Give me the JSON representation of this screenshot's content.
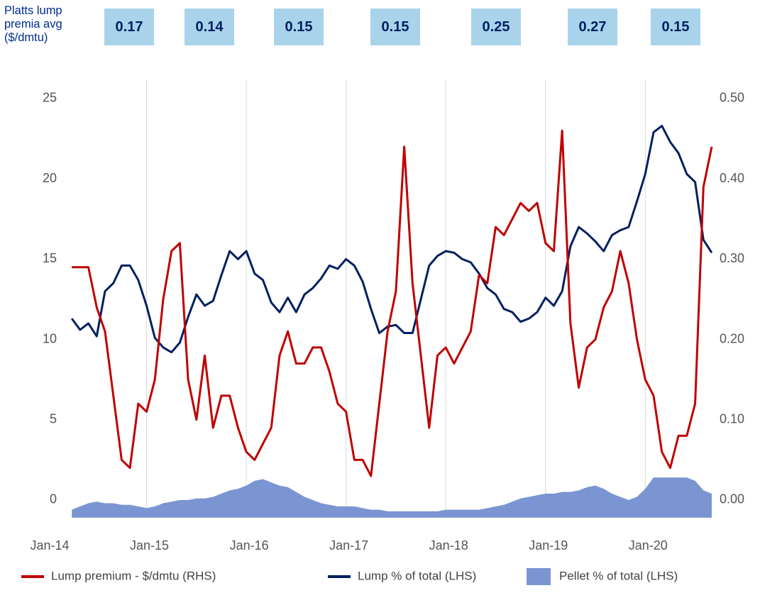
{
  "chart_data": {
    "type": "line",
    "premia": {
      "label": "Platts lump premia avg ($/dmtu)",
      "values": [
        0.17,
        0.14,
        0.15,
        0.15,
        0.25,
        0.27,
        0.15
      ]
    },
    "x": [
      "2014-04",
      "2014-05",
      "2014-06",
      "2014-07",
      "2014-08",
      "2014-09",
      "2014-10",
      "2014-11",
      "2014-12",
      "2015-01",
      "2015-02",
      "2015-03",
      "2015-04",
      "2015-05",
      "2015-06",
      "2015-07",
      "2015-08",
      "2015-09",
      "2015-10",
      "2015-11",
      "2015-12",
      "2016-01",
      "2016-02",
      "2016-03",
      "2016-04",
      "2016-05",
      "2016-06",
      "2016-07",
      "2016-08",
      "2016-09",
      "2016-10",
      "2016-11",
      "2016-12",
      "2017-01",
      "2017-02",
      "2017-03",
      "2017-04",
      "2017-05",
      "2017-06",
      "2017-07",
      "2017-08",
      "2017-09",
      "2017-10",
      "2017-11",
      "2017-12",
      "2018-01",
      "2018-02",
      "2018-03",
      "2018-04",
      "2018-05",
      "2018-06",
      "2018-07",
      "2018-08",
      "2018-09",
      "2018-10",
      "2018-11",
      "2018-12",
      "2019-01",
      "2019-02",
      "2019-03",
      "2019-04",
      "2019-05",
      "2019-06",
      "2019-07",
      "2019-08",
      "2019-09",
      "2019-10",
      "2019-11",
      "2019-12",
      "2020-01",
      "2020-02",
      "2020-03",
      "2020-04",
      "2020-05",
      "2020-06",
      "2020-07",
      "2020-08",
      "2020-09"
    ],
    "series": [
      {
        "name": "Lump premium - $/dmtu (RHS)",
        "type": "line",
        "axis": "y2",
        "color": "#c00000",
        "values": [
          0.29,
          0.29,
          0.29,
          0.24,
          0.21,
          0.13,
          0.05,
          0.04,
          0.12,
          0.11,
          0.15,
          0.25,
          0.31,
          0.32,
          0.15,
          0.1,
          0.18,
          0.09,
          0.13,
          0.13,
          0.09,
          0.06,
          0.05,
          0.07,
          0.09,
          0.18,
          0.21,
          0.17,
          0.17,
          0.19,
          0.19,
          0.16,
          0.12,
          0.11,
          0.05,
          0.05,
          0.03,
          0.12,
          0.21,
          0.26,
          0.44,
          0.27,
          0.18,
          0.09,
          0.18,
          0.19,
          0.17,
          0.19,
          0.21,
          0.28,
          0.27,
          0.34,
          0.33,
          0.35,
          0.37,
          0.36,
          0.37,
          0.32,
          0.31,
          0.46,
          0.22,
          0.14,
          0.19,
          0.2,
          0.24,
          0.26,
          0.31,
          0.27,
          0.2,
          0.15,
          0.13,
          0.06,
          0.04,
          0.08,
          0.08,
          0.12,
          0.39,
          0.44
        ]
      },
      {
        "name": "Lump % of total (LHS)",
        "type": "line",
        "color": "#002060",
        "values": [
          11.3,
          10.6,
          11.0,
          10.2,
          13.0,
          13.5,
          14.6,
          14.6,
          13.7,
          12.1,
          10.1,
          9.5,
          9.2,
          9.8,
          11.4,
          12.8,
          12.1,
          12.4,
          14.0,
          15.5,
          15.0,
          15.5,
          14.1,
          13.7,
          12.3,
          11.7,
          12.6,
          11.7,
          12.8,
          13.2,
          13.8,
          14.6,
          14.4,
          15.0,
          14.6,
          13.6,
          11.9,
          10.4,
          10.8,
          10.9,
          10.4,
          10.4,
          12.5,
          14.6,
          15.2,
          15.5,
          15.4,
          15.0,
          14.8,
          14.1,
          13.2,
          12.8,
          11.9,
          11.7,
          11.1,
          11.3,
          11.7,
          12.6,
          12.1,
          13.0,
          15.8,
          17.0,
          16.6,
          16.1,
          15.5,
          16.5,
          16.8,
          17.0,
          18.6,
          20.3,
          22.9,
          23.3,
          22.3,
          21.6,
          20.3,
          19.8,
          16.2,
          15.4
        ]
      },
      {
        "name": "Pellet % of total (LHS)",
        "type": "area",
        "color": "#7b95d3",
        "values": [
          -0.6,
          -0.4,
          -0.2,
          -0.1,
          -0.2,
          -0.2,
          -0.3,
          -0.3,
          -0.4,
          -0.5,
          -0.4,
          -0.2,
          -0.1,
          0,
          0,
          0.1,
          0.1,
          0.2,
          0.4,
          0.6,
          0.7,
          0.9,
          1.2,
          1.3,
          1.1,
          0.9,
          0.8,
          0.5,
          0.2,
          0,
          -0.2,
          -0.3,
          -0.4,
          -0.4,
          -0.4,
          -0.5,
          -0.6,
          -0.6,
          -0.7,
          -0.7,
          -0.7,
          -0.7,
          -0.7,
          -0.7,
          -0.7,
          -0.6,
          -0.6,
          -0.6,
          -0.6,
          -0.6,
          -0.5,
          -0.4,
          -0.3,
          -0.1,
          0.1,
          0.2,
          0.3,
          0.4,
          0.4,
          0.5,
          0.5,
          0.6,
          0.8,
          0.9,
          0.7,
          0.4,
          0.2,
          0,
          0.2,
          0.7,
          1.4,
          1.4,
          1.4,
          1.4,
          1.4,
          1.2,
          0.6,
          0.4
        ]
      }
    ],
    "xlim": [
      "2014-01",
      "2020-09"
    ],
    "xticks": [
      {
        "value": "2014-01",
        "label": "Jan-14"
      },
      {
        "value": "2015-01",
        "label": "Jan-15"
      },
      {
        "value": "2016-01",
        "label": "Jan-16"
      },
      {
        "value": "2017-01",
        "label": "Jan-17"
      },
      {
        "value": "2018-01",
        "label": "Jan-18"
      },
      {
        "value": "2019-01",
        "label": "Jan-19"
      },
      {
        "value": "2020-01",
        "label": "Jan-20"
      }
    ],
    "ylim": [
      -1.1,
      26.2
    ],
    "yticks": [
      0,
      5,
      10,
      15,
      20,
      25
    ],
    "y2lim": [
      -0.022,
      0.524
    ],
    "y2ticks": [
      {
        "value": 0,
        "label": "0.00"
      },
      {
        "value": 0.1,
        "label": "0.10"
      },
      {
        "value": 0.2,
        "label": "0.20"
      },
      {
        "value": 0.3,
        "label": "0.30"
      },
      {
        "value": 0.4,
        "label": "0.40"
      },
      {
        "value": 0.5,
        "label": "0.50"
      }
    ],
    "grid": "x",
    "legend": "bottom"
  }
}
